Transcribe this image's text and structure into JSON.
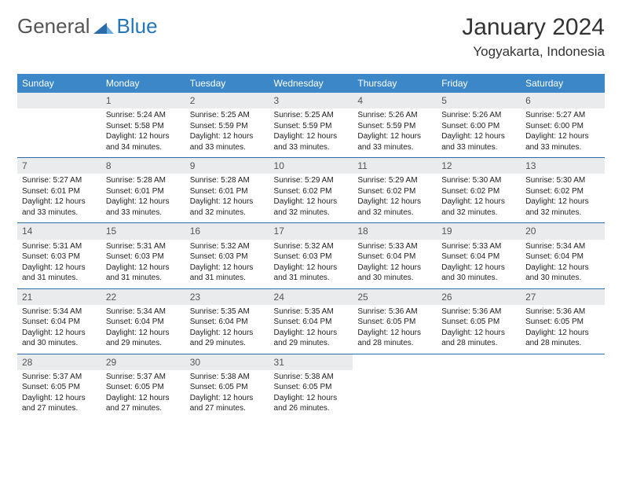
{
  "logo": {
    "general": "General",
    "blue": "Blue"
  },
  "colors": {
    "header_bg": "#3b87c8",
    "header_text": "#ffffff",
    "daynum_bg": "#e9ebec",
    "row_border": "#2a6ca8",
    "logo_blue": "#2277bb",
    "logo_gray": "#555555",
    "body_text": "#222222"
  },
  "title": "January 2024",
  "location": "Yogyakarta, Indonesia",
  "weekdays": [
    "Sunday",
    "Monday",
    "Tuesday",
    "Wednesday",
    "Thursday",
    "Friday",
    "Saturday"
  ],
  "grid": {
    "type": "calendar-table",
    "rows": 5,
    "cols": 7,
    "fontsize_header": 12,
    "fontsize_daynum": 12,
    "fontsize_body": 10
  },
  "days": [
    null,
    {
      "n": "1",
      "sr": "Sunrise: 5:24 AM",
      "ss": "Sunset: 5:58 PM",
      "d1": "Daylight: 12 hours",
      "d2": "and 34 minutes."
    },
    {
      "n": "2",
      "sr": "Sunrise: 5:25 AM",
      "ss": "Sunset: 5:59 PM",
      "d1": "Daylight: 12 hours",
      "d2": "and 33 minutes."
    },
    {
      "n": "3",
      "sr": "Sunrise: 5:25 AM",
      "ss": "Sunset: 5:59 PM",
      "d1": "Daylight: 12 hours",
      "d2": "and 33 minutes."
    },
    {
      "n": "4",
      "sr": "Sunrise: 5:26 AM",
      "ss": "Sunset: 5:59 PM",
      "d1": "Daylight: 12 hours",
      "d2": "and 33 minutes."
    },
    {
      "n": "5",
      "sr": "Sunrise: 5:26 AM",
      "ss": "Sunset: 6:00 PM",
      "d1": "Daylight: 12 hours",
      "d2": "and 33 minutes."
    },
    {
      "n": "6",
      "sr": "Sunrise: 5:27 AM",
      "ss": "Sunset: 6:00 PM",
      "d1": "Daylight: 12 hours",
      "d2": "and 33 minutes."
    },
    {
      "n": "7",
      "sr": "Sunrise: 5:27 AM",
      "ss": "Sunset: 6:01 PM",
      "d1": "Daylight: 12 hours",
      "d2": "and 33 minutes."
    },
    {
      "n": "8",
      "sr": "Sunrise: 5:28 AM",
      "ss": "Sunset: 6:01 PM",
      "d1": "Daylight: 12 hours",
      "d2": "and 33 minutes."
    },
    {
      "n": "9",
      "sr": "Sunrise: 5:28 AM",
      "ss": "Sunset: 6:01 PM",
      "d1": "Daylight: 12 hours",
      "d2": "and 32 minutes."
    },
    {
      "n": "10",
      "sr": "Sunrise: 5:29 AM",
      "ss": "Sunset: 6:02 PM",
      "d1": "Daylight: 12 hours",
      "d2": "and 32 minutes."
    },
    {
      "n": "11",
      "sr": "Sunrise: 5:29 AM",
      "ss": "Sunset: 6:02 PM",
      "d1": "Daylight: 12 hours",
      "d2": "and 32 minutes."
    },
    {
      "n": "12",
      "sr": "Sunrise: 5:30 AM",
      "ss": "Sunset: 6:02 PM",
      "d1": "Daylight: 12 hours",
      "d2": "and 32 minutes."
    },
    {
      "n": "13",
      "sr": "Sunrise: 5:30 AM",
      "ss": "Sunset: 6:02 PM",
      "d1": "Daylight: 12 hours",
      "d2": "and 32 minutes."
    },
    {
      "n": "14",
      "sr": "Sunrise: 5:31 AM",
      "ss": "Sunset: 6:03 PM",
      "d1": "Daylight: 12 hours",
      "d2": "and 31 minutes."
    },
    {
      "n": "15",
      "sr": "Sunrise: 5:31 AM",
      "ss": "Sunset: 6:03 PM",
      "d1": "Daylight: 12 hours",
      "d2": "and 31 minutes."
    },
    {
      "n": "16",
      "sr": "Sunrise: 5:32 AM",
      "ss": "Sunset: 6:03 PM",
      "d1": "Daylight: 12 hours",
      "d2": "and 31 minutes."
    },
    {
      "n": "17",
      "sr": "Sunrise: 5:32 AM",
      "ss": "Sunset: 6:03 PM",
      "d1": "Daylight: 12 hours",
      "d2": "and 31 minutes."
    },
    {
      "n": "18",
      "sr": "Sunrise: 5:33 AM",
      "ss": "Sunset: 6:04 PM",
      "d1": "Daylight: 12 hours",
      "d2": "and 30 minutes."
    },
    {
      "n": "19",
      "sr": "Sunrise: 5:33 AM",
      "ss": "Sunset: 6:04 PM",
      "d1": "Daylight: 12 hours",
      "d2": "and 30 minutes."
    },
    {
      "n": "20",
      "sr": "Sunrise: 5:34 AM",
      "ss": "Sunset: 6:04 PM",
      "d1": "Daylight: 12 hours",
      "d2": "and 30 minutes."
    },
    {
      "n": "21",
      "sr": "Sunrise: 5:34 AM",
      "ss": "Sunset: 6:04 PM",
      "d1": "Daylight: 12 hours",
      "d2": "and 30 minutes."
    },
    {
      "n": "22",
      "sr": "Sunrise: 5:34 AM",
      "ss": "Sunset: 6:04 PM",
      "d1": "Daylight: 12 hours",
      "d2": "and 29 minutes."
    },
    {
      "n": "23",
      "sr": "Sunrise: 5:35 AM",
      "ss": "Sunset: 6:04 PM",
      "d1": "Daylight: 12 hours",
      "d2": "and 29 minutes."
    },
    {
      "n": "24",
      "sr": "Sunrise: 5:35 AM",
      "ss": "Sunset: 6:04 PM",
      "d1": "Daylight: 12 hours",
      "d2": "and 29 minutes."
    },
    {
      "n": "25",
      "sr": "Sunrise: 5:36 AM",
      "ss": "Sunset: 6:05 PM",
      "d1": "Daylight: 12 hours",
      "d2": "and 28 minutes."
    },
    {
      "n": "26",
      "sr": "Sunrise: 5:36 AM",
      "ss": "Sunset: 6:05 PM",
      "d1": "Daylight: 12 hours",
      "d2": "and 28 minutes."
    },
    {
      "n": "27",
      "sr": "Sunrise: 5:36 AM",
      "ss": "Sunset: 6:05 PM",
      "d1": "Daylight: 12 hours",
      "d2": "and 28 minutes."
    },
    {
      "n": "28",
      "sr": "Sunrise: 5:37 AM",
      "ss": "Sunset: 6:05 PM",
      "d1": "Daylight: 12 hours",
      "d2": "and 27 minutes."
    },
    {
      "n": "29",
      "sr": "Sunrise: 5:37 AM",
      "ss": "Sunset: 6:05 PM",
      "d1": "Daylight: 12 hours",
      "d2": "and 27 minutes."
    },
    {
      "n": "30",
      "sr": "Sunrise: 5:38 AM",
      "ss": "Sunset: 6:05 PM",
      "d1": "Daylight: 12 hours",
      "d2": "and 27 minutes."
    },
    {
      "n": "31",
      "sr": "Sunrise: 5:38 AM",
      "ss": "Sunset: 6:05 PM",
      "d1": "Daylight: 12 hours",
      "d2": "and 26 minutes."
    },
    null,
    null,
    null
  ]
}
